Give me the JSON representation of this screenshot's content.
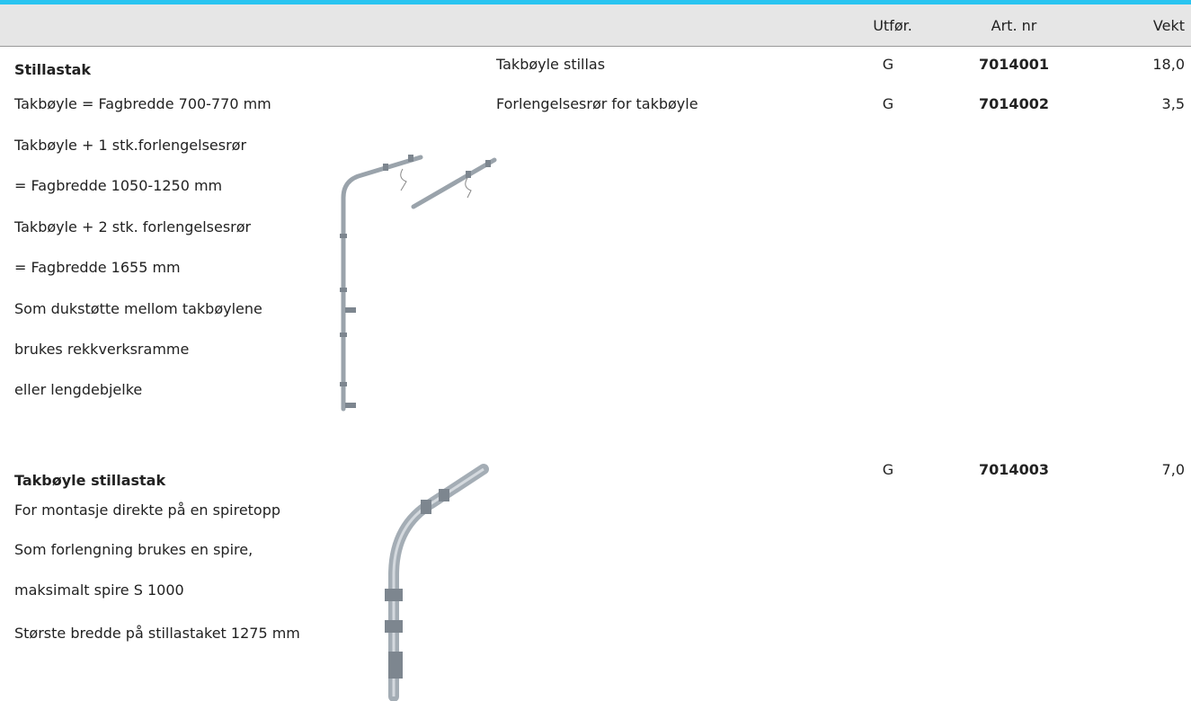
{
  "header": {
    "columns": [
      "Utfør.",
      "Art. nr",
      "Vekt"
    ]
  },
  "sections": [
    {
      "title": "Stillastak",
      "description": [
        "Takbøyle = Fagbredde 700-770 mm",
        "Takbøyle + 1 stk.forlengelsesrør",
        "= Fagbredde 1050-1250 mm",
        "Takbøyle + 2 stk. forlengelsesrør",
        "= Fagbredde 1655 mm",
        "Som dukstøtte mellom takbøylene",
        "brukes rekkverksramme",
        "eller lengdebjelke"
      ],
      "items": [
        {
          "name": "Takbøyle stillas",
          "variant": "G",
          "article": "7014001",
          "weight": "18,0"
        },
        {
          "name": "Forlengelsesrør for takbøyle",
          "variant": "G",
          "article": "7014002",
          "weight": "3,5"
        }
      ]
    },
    {
      "title": "Takbøyle stillastak",
      "description": [
        "For montasje direkte på en spiretopp",
        "Som forlengning brukes en spire,",
        "maksimalt spire S 1000",
        "Største bredde på stillastaket 1275 mm"
      ],
      "items": [
        {
          "variant": "G",
          "article": "7014003",
          "weight": "7,0"
        }
      ]
    }
  ]
}
